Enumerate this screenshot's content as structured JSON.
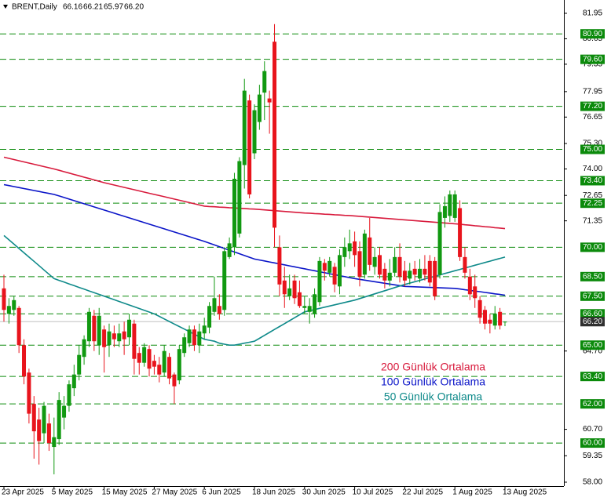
{
  "chart_data": {
    "type": "candlestick",
    "header": {
      "symbol": "BRENT,Daily",
      "ohlc_labels": [
        "66.16",
        "66.21",
        "65.97",
        "66.20"
      ]
    },
    "up_color": "#119911",
    "down_color": "#e8141c",
    "ylim": [
      57.8,
      82.63
    ],
    "yticks": [
      {
        "value": 81.95,
        "label": "81.95"
      },
      {
        "value": 80.65,
        "label": "80.65"
      },
      {
        "value": 79.35,
        "label": "79.35"
      },
      {
        "value": 77.95,
        "label": "77.95"
      },
      {
        "value": 76.65,
        "label": "76.65"
      },
      {
        "value": 75.3,
        "label": "75.30"
      },
      {
        "value": 74,
        "label": "74.00"
      },
      {
        "value": 72.65,
        "label": "72.65"
      },
      {
        "value": 71.35,
        "label": "71.35"
      },
      {
        "value": 64.7,
        "label": "64.70"
      },
      {
        "value": 60.7,
        "label": "60.70"
      },
      {
        "value": 59.35,
        "label": "59.35"
      },
      {
        "value": 58,
        "label": "58.00"
      }
    ],
    "levels": [
      {
        "value": 80.9,
        "label": "80.90"
      },
      {
        "value": 79.6,
        "label": "79.60"
      },
      {
        "value": 77.2,
        "label": "77.20"
      },
      {
        "value": 75,
        "label": "75.00"
      },
      {
        "value": 73.4,
        "label": "73.40"
      },
      {
        "value": 72.25,
        "label": "72.25"
      },
      {
        "value": 70,
        "label": "70.00"
      },
      {
        "value": 68.5,
        "label": "68.50"
      },
      {
        "value": 67.5,
        "label": "67.50"
      },
      {
        "value": 66.6,
        "label": "66.60"
      },
      {
        "value": 65,
        "label": "65.00"
      },
      {
        "value": 63.4,
        "label": "63.40"
      },
      {
        "value": 62,
        "label": "62.00"
      },
      {
        "value": 60,
        "label": "60.00"
      }
    ],
    "level_color": "#0b8a0b",
    "last_price": {
      "value": 66.2,
      "label": "66.20"
    },
    "categories": [
      "23 Apr 2025",
      null,
      null,
      null,
      null,
      null,
      null,
      null,
      null,
      null,
      "5 May 2025",
      null,
      null,
      null,
      null,
      null,
      null,
      null,
      null,
      null,
      "15 May 2025",
      null,
      null,
      null,
      null,
      null,
      null,
      null,
      null,
      null,
      "27 May 2025",
      null,
      null,
      null,
      null,
      null,
      null,
      null,
      null,
      null,
      "6 Jun 2025",
      null,
      null,
      null,
      null,
      null,
      null,
      null,
      null,
      null,
      "18 Jun 2025",
      null,
      null,
      null,
      null,
      null,
      null,
      null,
      null,
      null,
      "30 Jun 2025",
      null,
      null,
      null,
      null,
      null,
      null,
      null,
      null,
      null,
      "10 Jul 2025",
      null,
      null,
      null,
      null,
      null,
      null,
      null,
      null,
      null,
      "22 Jul 2025",
      null,
      null,
      null,
      null,
      null,
      null,
      null,
      null,
      null,
      "1 Aug 2025",
      null,
      null,
      null,
      null,
      null,
      null,
      null,
      null,
      null,
      "13 Aug 2025"
    ],
    "ohlc": [
      [
        67.9,
        68.6,
        66.2,
        66.8
      ],
      [
        66.6,
        67.4,
        66.1,
        67.0
      ],
      [
        66.8,
        67.5,
        66.5,
        67.3
      ],
      [
        66.9,
        67.0,
        64.6,
        65.0
      ],
      [
        65.0,
        65.3,
        63.0,
        63.4
      ],
      [
        63.6,
        63.8,
        61.0,
        61.5
      ],
      [
        62.0,
        62.4,
        59.2,
        60.6
      ],
      [
        61.2,
        61.8,
        58.9,
        60.1
      ],
      [
        60.5,
        62.1,
        60.0,
        61.9
      ],
      [
        61.0,
        61.5,
        59.6,
        60.0
      ],
      [
        59.8,
        61.3,
        58.4,
        60.3
      ],
      [
        60.2,
        62.6,
        59.9,
        62.2
      ],
      [
        61.3,
        62.4,
        60.7,
        61.9
      ],
      [
        61.9,
        63.2,
        61.6,
        63.0
      ],
      [
        62.8,
        64.0,
        62.4,
        63.5
      ],
      [
        63.5,
        65.0,
        63.2,
        64.5
      ],
      [
        64.4,
        65.5,
        64.0,
        65.3
      ],
      [
        65.2,
        66.9,
        64.9,
        66.7
      ],
      [
        66.5,
        66.8,
        64.7,
        65.2
      ],
      [
        65.0,
        66.9,
        64.5,
        66.5
      ],
      [
        65.8,
        66.0,
        63.6,
        64.9
      ],
      [
        65.0,
        66.1,
        64.4,
        65.7
      ],
      [
        65.6,
        66.0,
        64.9,
        65.3
      ],
      [
        65.2,
        66.1,
        64.9,
        65.6
      ],
      [
        65.7,
        66.2,
        64.5,
        65.3
      ],
      [
        65.4,
        66.6,
        65.0,
        66.3
      ],
      [
        66.1,
        66.3,
        63.5,
        64.3
      ],
      [
        64.6,
        64.9,
        63.5,
        64.1
      ],
      [
        64.1,
        65.1,
        63.9,
        64.9
      ],
      [
        64.8,
        65.0,
        63.4,
        63.8
      ],
      [
        64.2,
        64.5,
        63.5,
        63.9
      ],
      [
        64.0,
        64.4,
        63.1,
        63.5
      ],
      [
        63.6,
        65.0,
        63.4,
        64.7
      ],
      [
        64.4,
        64.6,
        63.0,
        63.3
      ],
      [
        63.5,
        63.6,
        62.0,
        62.9
      ],
      [
        63.2,
        65.0,
        63.0,
        64.8
      ],
      [
        64.6,
        65.6,
        64.4,
        65.4
      ],
      [
        65.1,
        66.0,
        64.9,
        65.8
      ],
      [
        65.8,
        66.0,
        64.7,
        65.0
      ],
      [
        65.0,
        66.1,
        64.6,
        65.7
      ],
      [
        65.6,
        66.4,
        65.3,
        66.0
      ],
      [
        65.9,
        67.2,
        65.6,
        67.0
      ],
      [
        66.7,
        68.5,
        66.5,
        67.4
      ],
      [
        67.0,
        67.6,
        66.3,
        66.6
      ],
      [
        66.8,
        70.0,
        66.5,
        69.8
      ],
      [
        69.5,
        70.5,
        69.4,
        70.2
      ],
      [
        70.0,
        73.8,
        69.6,
        73.5
      ],
      [
        70.7,
        74.6,
        70.5,
        74.4
      ],
      [
        74.2,
        78.6,
        73.0,
        78.0
      ],
      [
        77.5,
        77.8,
        72.5,
        72.7
      ],
      [
        74.8,
        77.3,
        74.5,
        77.0
      ],
      [
        76.4,
        78.3,
        76.0,
        77.8
      ],
      [
        77.9,
        79.5,
        76.5,
        79.0
      ],
      [
        77.6,
        78.0,
        75.8,
        77.4
      ],
      [
        80.5,
        81.4,
        70.0,
        71.0
      ],
      [
        70.0,
        70.6,
        67.5,
        68.1
      ],
      [
        68.3,
        69.0,
        66.9,
        67.6
      ],
      [
        67.5,
        68.6,
        67.3,
        67.9
      ],
      [
        68.3,
        68.6,
        67.1,
        67.4
      ],
      [
        67.7,
        68.3,
        66.9,
        67.0
      ],
      [
        66.9,
        67.5,
        66.6,
        67.0
      ],
      [
        66.7,
        67.4,
        66.1,
        67.0
      ],
      [
        66.6,
        67.9,
        66.4,
        67.6
      ],
      [
        67.2,
        69.5,
        67.0,
        69.3
      ],
      [
        69.2,
        69.4,
        68.3,
        68.8
      ],
      [
        68.7,
        69.5,
        68.5,
        69.3
      ],
      [
        69.0,
        69.2,
        67.7,
        68.1
      ],
      [
        68.0,
        69.9,
        67.6,
        69.6
      ],
      [
        69.5,
        70.5,
        69.0,
        70.0
      ],
      [
        69.8,
        70.9,
        69.4,
        70.2
      ],
      [
        70.3,
        70.8,
        69.0,
        69.6
      ],
      [
        69.8,
        70.3,
        68.0,
        68.5
      ],
      [
        68.6,
        70.9,
        68.4,
        70.7
      ],
      [
        70.5,
        71.5,
        68.8,
        69.1
      ],
      [
        69.0,
        70.0,
        68.6,
        69.5
      ],
      [
        69.6,
        70.0,
        68.4,
        68.6
      ],
      [
        68.9,
        69.2,
        67.9,
        68.3
      ],
      [
        68.3,
        69.4,
        68.0,
        68.7
      ],
      [
        68.7,
        70.0,
        68.5,
        69.5
      ],
      [
        69.5,
        70.2,
        68.2,
        68.5
      ],
      [
        68.8,
        69.3,
        68.0,
        68.3
      ],
      [
        68.4,
        69.2,
        68.1,
        68.8
      ],
      [
        68.9,
        69.3,
        68.3,
        68.6
      ],
      [
        68.4,
        69.4,
        68.2,
        68.9
      ],
      [
        68.9,
        69.6,
        68.3,
        68.6
      ],
      [
        69.3,
        69.6,
        68.0,
        68.2
      ],
      [
        69.3,
        69.5,
        67.3,
        67.5
      ],
      [
        68.6,
        72.2,
        68.4,
        71.8
      ],
      [
        71.5,
        72.6,
        71.0,
        72.1
      ],
      [
        71.6,
        72.9,
        71.3,
        72.7
      ],
      [
        71.5,
        72.9,
        71.3,
        72.7
      ],
      [
        72.0,
        72.4,
        69.3,
        69.5
      ],
      [
        69.5,
        70.0,
        68.4,
        68.7
      ],
      [
        68.5,
        68.9,
        67.3,
        67.6
      ],
      [
        68.0,
        68.6,
        66.9,
        67.4
      ],
      [
        67.3,
        67.5,
        66.1,
        66.4
      ],
      [
        66.8,
        67.0,
        65.8,
        66.1
      ],
      [
        66.3,
        66.6,
        65.6,
        66.1
      ],
      [
        66.0,
        67.0,
        65.8,
        66.6
      ],
      [
        66.7,
        66.9,
        65.8,
        66.0
      ],
      [
        66.16,
        66.21,
        65.97,
        66.2
      ]
    ],
    "series": [
      {
        "name": "200 Günlük Ortalama",
        "color": "#d81a3c",
        "values": [
          74.6,
          74.54,
          74.48,
          74.42,
          74.36,
          74.3,
          74.24,
          74.18,
          74.12,
          74.06,
          74.0,
          73.93,
          73.86,
          73.79,
          73.72,
          73.65,
          73.58,
          73.51,
          73.44,
          73.37,
          73.3,
          73.24,
          73.18,
          73.12,
          73.06,
          73.0,
          72.94,
          72.88,
          72.82,
          72.76,
          72.7,
          72.64,
          72.58,
          72.52,
          72.46,
          72.4,
          72.34,
          72.28,
          72.22,
          72.16,
          72.1,
          72.08,
          72.07,
          72.05,
          72.04,
          72.02,
          72.01,
          71.99,
          71.98,
          71.96,
          71.95,
          71.93,
          71.91,
          71.89,
          71.87,
          71.85,
          71.83,
          71.81,
          71.79,
          71.77,
          71.75,
          71.74,
          71.72,
          71.71,
          71.69,
          71.68,
          71.66,
          71.65,
          71.63,
          71.62,
          71.6,
          71.58,
          71.56,
          71.54,
          71.52,
          71.5,
          71.48,
          71.46,
          71.44,
          71.42,
          71.4,
          71.38,
          71.36,
          71.34,
          71.32,
          71.3,
          71.28,
          71.26,
          71.24,
          71.22,
          71.2,
          71.18,
          71.15,
          71.13,
          71.1,
          71.08,
          71.05,
          71.03,
          71.0,
          70.98,
          70.95
        ]
      },
      {
        "name": "100 Günlük Ortalama",
        "color": "#0a14c8",
        "values": [
          73.2,
          73.15,
          73.1,
          73.05,
          73.0,
          72.95,
          72.9,
          72.85,
          72.8,
          72.75,
          72.7,
          72.62,
          72.54,
          72.46,
          72.38,
          72.3,
          72.22,
          72.14,
          72.06,
          71.98,
          71.9,
          71.82,
          71.74,
          71.66,
          71.58,
          71.5,
          71.42,
          71.34,
          71.26,
          71.18,
          71.1,
          71.02,
          70.94,
          70.86,
          70.78,
          70.7,
          70.62,
          70.54,
          70.46,
          70.38,
          70.3,
          70.21,
          70.12,
          70.03,
          69.94,
          69.85,
          69.76,
          69.67,
          69.58,
          69.49,
          69.4,
          69.35,
          69.3,
          69.25,
          69.2,
          69.15,
          69.1,
          69.05,
          69.0,
          68.95,
          68.9,
          68.85,
          68.8,
          68.75,
          68.7,
          68.65,
          68.6,
          68.55,
          68.5,
          68.45,
          68.4,
          68.36,
          68.32,
          68.28,
          68.24,
          68.2,
          68.16,
          68.12,
          68.08,
          68.04,
          68.0,
          67.99,
          67.98,
          67.97,
          67.96,
          67.95,
          67.94,
          67.93,
          67.92,
          67.91,
          67.9,
          67.87,
          67.83,
          67.8,
          67.76,
          67.73,
          67.69,
          67.66,
          67.62,
          67.59,
          67.55
        ]
      },
      {
        "name": " 50 Günlük Ortalama",
        "color": "#0f8a8a",
        "values": [
          70.6,
          70.38,
          70.16,
          69.94,
          69.72,
          69.5,
          69.28,
          69.06,
          68.84,
          68.62,
          68.4,
          68.31,
          68.22,
          68.13,
          68.04,
          67.95,
          67.86,
          67.77,
          67.68,
          67.59,
          67.5,
          67.41,
          67.32,
          67.23,
          67.14,
          67.05,
          66.96,
          66.87,
          66.78,
          66.69,
          66.6,
          66.47,
          66.34,
          66.21,
          66.08,
          65.95,
          65.82,
          65.69,
          65.56,
          65.43,
          65.3,
          65.25,
          65.2,
          65.1,
          65.05,
          65.0,
          65.0,
          65.05,
          65.1,
          65.15,
          65.2,
          65.35,
          65.5,
          65.65,
          65.8,
          65.95,
          66.1,
          66.25,
          66.4,
          66.55,
          66.7,
          66.76,
          66.82,
          66.88,
          66.94,
          67.0,
          67.06,
          67.12,
          67.18,
          67.24,
          67.3,
          67.38,
          67.46,
          67.54,
          67.62,
          67.7,
          67.78,
          67.86,
          67.94,
          68.02,
          68.1,
          68.17,
          68.24,
          68.31,
          68.38,
          68.45,
          68.52,
          68.59,
          68.66,
          68.73,
          68.8,
          68.87,
          68.94,
          69.01,
          69.08,
          69.15,
          69.22,
          69.29,
          69.36,
          69.43,
          69.5
        ]
      }
    ]
  }
}
